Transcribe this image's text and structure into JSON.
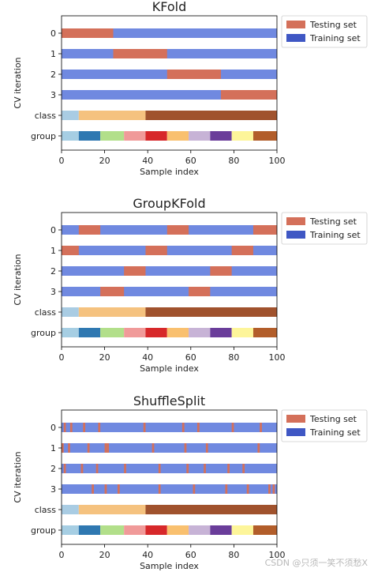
{
  "chart_data": [
    {
      "type": "bar",
      "title": "KFold",
      "xlabel": "Sample index",
      "ylabel": "CV iteration",
      "xlim": [
        0,
        100
      ],
      "xticks": [
        "0",
        "20",
        "40",
        "60",
        "80",
        "100"
      ],
      "row_labels": [
        "0",
        "1",
        "2",
        "3",
        "class",
        "group"
      ],
      "legend": {
        "position": "top-right-outside",
        "entries": [
          {
            "label": "Testing set",
            "color": "#d4705a"
          },
          {
            "label": "Training set",
            "color": "#3f57c4"
          }
        ]
      },
      "split_colors": {
        "test": "#d4705a",
        "train": "#7089e0"
      },
      "splits": [
        [
          [
            0,
            24
          ]
        ],
        [
          [
            24,
            49
          ]
        ],
        [
          [
            49,
            74
          ]
        ],
        [
          [
            74,
            100
          ]
        ]
      ],
      "class_segments": [
        {
          "start": 0,
          "end": 8,
          "color": "#a9cce3"
        },
        {
          "start": 8,
          "end": 39,
          "color": "#f5c27f"
        },
        {
          "start": 39,
          "end": 100,
          "color": "#a0522d"
        }
      ],
      "group_segments": [
        {
          "start": 0,
          "end": 8,
          "color": "#a6cee3"
        },
        {
          "start": 8,
          "end": 18,
          "color": "#2f78b1"
        },
        {
          "start": 18,
          "end": 29,
          "color": "#b2df8a"
        },
        {
          "start": 29,
          "end": 39,
          "color": "#f09a99"
        },
        {
          "start": 39,
          "end": 49,
          "color": "#d7282a"
        },
        {
          "start": 49,
          "end": 59,
          "color": "#f9c06f"
        },
        {
          "start": 59,
          "end": 69,
          "color": "#c7b3d6"
        },
        {
          "start": 69,
          "end": 79,
          "color": "#6a3d9a"
        },
        {
          "start": 79,
          "end": 89,
          "color": "#fdf59a"
        },
        {
          "start": 89,
          "end": 100,
          "color": "#b25d2a"
        }
      ]
    },
    {
      "type": "bar",
      "title": "GroupKFold",
      "xlabel": "Sample index",
      "ylabel": "CV iteration",
      "xlim": [
        0,
        100
      ],
      "xticks": [
        "0",
        "20",
        "40",
        "60",
        "80",
        "100"
      ],
      "row_labels": [
        "0",
        "1",
        "2",
        "3",
        "class",
        "group"
      ],
      "legend": {
        "position": "top-right-outside",
        "entries": [
          {
            "label": "Testing set",
            "color": "#d4705a"
          },
          {
            "label": "Training set",
            "color": "#3f57c4"
          }
        ]
      },
      "split_colors": {
        "test": "#d4705a",
        "train": "#7089e0"
      },
      "splits": [
        [
          [
            8,
            18
          ],
          [
            49,
            59
          ],
          [
            89,
            100
          ]
        ],
        [
          [
            0,
            8
          ],
          [
            39,
            49
          ],
          [
            79,
            89
          ]
        ],
        [
          [
            29,
            39
          ],
          [
            69,
            79
          ]
        ],
        [
          [
            18,
            29
          ],
          [
            59,
            69
          ]
        ]
      ],
      "class_segments": [
        {
          "start": 0,
          "end": 8,
          "color": "#a9cce3"
        },
        {
          "start": 8,
          "end": 39,
          "color": "#f5c27f"
        },
        {
          "start": 39,
          "end": 100,
          "color": "#a0522d"
        }
      ],
      "group_segments": [
        {
          "start": 0,
          "end": 8,
          "color": "#a6cee3"
        },
        {
          "start": 8,
          "end": 18,
          "color": "#2f78b1"
        },
        {
          "start": 18,
          "end": 29,
          "color": "#b2df8a"
        },
        {
          "start": 29,
          "end": 39,
          "color": "#f09a99"
        },
        {
          "start": 39,
          "end": 49,
          "color": "#d7282a"
        },
        {
          "start": 49,
          "end": 59,
          "color": "#f9c06f"
        },
        {
          "start": 59,
          "end": 69,
          "color": "#c7b3d6"
        },
        {
          "start": 69,
          "end": 79,
          "color": "#6a3d9a"
        },
        {
          "start": 79,
          "end": 89,
          "color": "#fdf59a"
        },
        {
          "start": 89,
          "end": 100,
          "color": "#b25d2a"
        }
      ]
    },
    {
      "type": "bar",
      "title": "ShuffleSplit",
      "xlabel": "Sample index",
      "ylabel": "CV iteration",
      "xlim": [
        0,
        100
      ],
      "xticks": [
        "0",
        "20",
        "40",
        "60",
        "80",
        "100"
      ],
      "row_labels": [
        "0",
        "1",
        "2",
        "3",
        "class",
        "group"
      ],
      "legend": {
        "position": "top-right-outside",
        "entries": [
          {
            "label": "Testing set",
            "color": "#d4705a"
          },
          {
            "label": "Training set",
            "color": "#3f57c4"
          }
        ]
      },
      "split_colors": {
        "test": "#d4705a",
        "train": "#7089e0"
      },
      "splits": [
        [
          [
            1,
            2
          ],
          [
            4,
            5
          ],
          [
            10,
            11
          ],
          [
            17,
            18
          ],
          [
            38,
            39
          ],
          [
            56,
            57
          ],
          [
            63,
            64
          ],
          [
            79,
            80
          ],
          [
            92,
            93
          ]
        ],
        [
          [
            0,
            1
          ],
          [
            3,
            4
          ],
          [
            12,
            13
          ],
          [
            20,
            21
          ],
          [
            21,
            22
          ],
          [
            42,
            43
          ],
          [
            57,
            58
          ],
          [
            67,
            68
          ],
          [
            91,
            92
          ]
        ],
        [
          [
            1,
            2
          ],
          [
            9,
            10
          ],
          [
            16,
            17
          ],
          [
            29,
            30
          ],
          [
            45,
            46
          ],
          [
            58,
            59
          ],
          [
            66,
            67
          ],
          [
            77,
            78
          ],
          [
            84,
            85
          ]
        ],
        [
          [
            14,
            15
          ],
          [
            20,
            21
          ],
          [
            26,
            27
          ],
          [
            45,
            46
          ],
          [
            61,
            62
          ],
          [
            76,
            77
          ],
          [
            86,
            87
          ],
          [
            96,
            97
          ],
          [
            98,
            99
          ]
        ]
      ],
      "class_segments": [
        {
          "start": 0,
          "end": 8,
          "color": "#a9cce3"
        },
        {
          "start": 8,
          "end": 39,
          "color": "#f5c27f"
        },
        {
          "start": 39,
          "end": 100,
          "color": "#a0522d"
        }
      ],
      "group_segments": [
        {
          "start": 0,
          "end": 8,
          "color": "#a6cee3"
        },
        {
          "start": 8,
          "end": 18,
          "color": "#2f78b1"
        },
        {
          "start": 18,
          "end": 29,
          "color": "#b2df8a"
        },
        {
          "start": 29,
          "end": 39,
          "color": "#f09a99"
        },
        {
          "start": 39,
          "end": 49,
          "color": "#d7282a"
        },
        {
          "start": 49,
          "end": 59,
          "color": "#f9c06f"
        },
        {
          "start": 59,
          "end": 69,
          "color": "#c7b3d6"
        },
        {
          "start": 69,
          "end": 79,
          "color": "#6a3d9a"
        },
        {
          "start": 79,
          "end": 89,
          "color": "#fdf59a"
        },
        {
          "start": 89,
          "end": 100,
          "color": "#b25d2a"
        }
      ]
    }
  ],
  "watermark": "CSDN @只须一笑不须愁X"
}
